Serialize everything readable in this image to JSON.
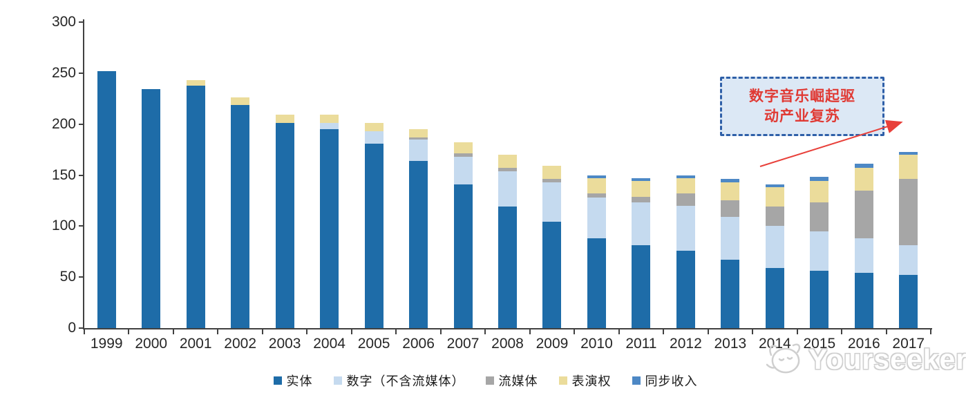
{
  "watermark": {
    "text": "Yourseeker",
    "logo": "cat-face-outline"
  },
  "annotation": {
    "line1": "数字音乐崛起驱",
    "line2": "动产业复苏",
    "text_color": "#e03a34",
    "box_fill": "#dce8f5",
    "box_border": "#2e5fa8",
    "arrow_color": "#e8403a"
  },
  "chart_data": {
    "type": "bar",
    "stacked": true,
    "title": "",
    "xlabel": "",
    "ylabel": "",
    "ylim": [
      0,
      300
    ],
    "y_ticks": [
      0,
      50,
      100,
      150,
      200,
      250,
      300
    ],
    "grid": false,
    "legend_position": "bottom",
    "categories": [
      "1999",
      "2000",
      "2001",
      "2002",
      "2003",
      "2004",
      "2005",
      "2006",
      "2007",
      "2008",
      "2009",
      "2010",
      "2011",
      "2012",
      "2013",
      "2014",
      "2015",
      "2016",
      "2017"
    ],
    "series": [
      {
        "name": "实体",
        "color": "#1e6ca8",
        "values": [
          252,
          234,
          238,
          219,
          201,
          195,
          181,
          164,
          141,
          119,
          104,
          88,
          81,
          76,
          67,
          59,
          56,
          54,
          52
        ]
      },
      {
        "name": "数字（不含流媒体）",
        "color": "#c5daef",
        "values": [
          0,
          0,
          0,
          0,
          0,
          6,
          12,
          21,
          27,
          35,
          39,
          40,
          42,
          44,
          42,
          41,
          39,
          34,
          29
        ]
      },
      {
        "name": "流媒体",
        "color": "#a6a6a6",
        "values": [
          0,
          0,
          0,
          0,
          0,
          0,
          0,
          2,
          3,
          3,
          3,
          4,
          6,
          12,
          16,
          19,
          28,
          47,
          65
        ]
      },
      {
        "name": "表演权",
        "color": "#ebdc9b",
        "values": [
          0,
          0,
          5,
          7,
          8,
          8,
          8,
          8,
          11,
          13,
          13,
          15,
          15,
          15,
          18,
          19,
          21,
          22,
          24
        ]
      },
      {
        "name": "同步收入",
        "color": "#4d88c5",
        "values": [
          0,
          0,
          0,
          0,
          0,
          0,
          0,
          0,
          0,
          0,
          0,
          3,
          3,
          3,
          3,
          3,
          4,
          4,
          3
        ]
      }
    ]
  }
}
